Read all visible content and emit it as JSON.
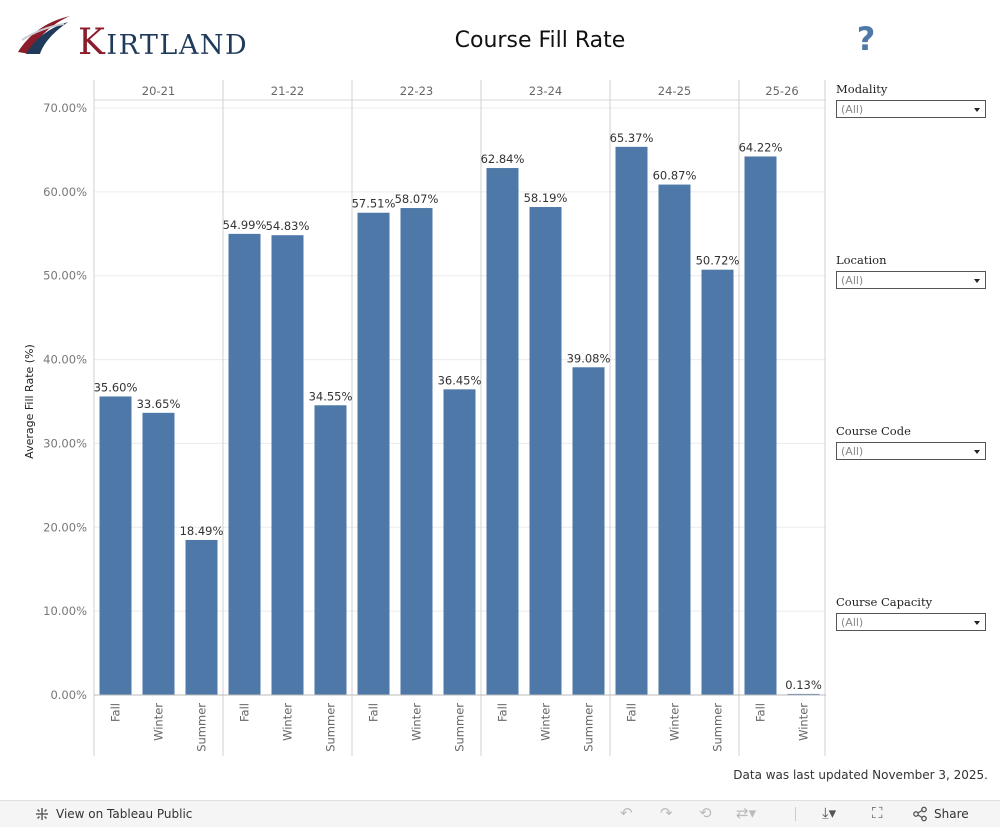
{
  "header": {
    "logo_text_initial": "K",
    "logo_text_rest": "IRTLAND",
    "title": "Course Fill Rate",
    "help_symbol": "?"
  },
  "chart_data": {
    "type": "bar",
    "title": "Course Fill Rate",
    "ylabel": "Average Fill Rate (%)",
    "xlabel": "",
    "ylim": [
      0,
      70
    ],
    "yticks": [
      "0.00%",
      "10.00%",
      "20.00%",
      "30.00%",
      "40.00%",
      "50.00%",
      "60.00%",
      "70.00%"
    ],
    "grid": true,
    "bar_color": "#4e78a8",
    "groups": [
      {
        "label": "20-21",
        "bars": [
          {
            "term": "Fall",
            "value": 35.6,
            "text": "35.60%"
          },
          {
            "term": "Winter",
            "value": 33.65,
            "text": "33.65%"
          },
          {
            "term": "Summer",
            "value": 18.49,
            "text": "18.49%"
          }
        ]
      },
      {
        "label": "21-22",
        "bars": [
          {
            "term": "Fall",
            "value": 54.99,
            "text": "54.99%"
          },
          {
            "term": "Winter",
            "value": 54.83,
            "text": "54.83%"
          },
          {
            "term": "Summer",
            "value": 34.55,
            "text": "34.55%"
          }
        ]
      },
      {
        "label": "22-23",
        "bars": [
          {
            "term": "Fall",
            "value": 57.51,
            "text": "57.51%"
          },
          {
            "term": "Winter",
            "value": 58.07,
            "text": "58.07%"
          },
          {
            "term": "Summer",
            "value": 36.45,
            "text": "36.45%"
          }
        ]
      },
      {
        "label": "23-24",
        "bars": [
          {
            "term": "Fall",
            "value": 62.84,
            "text": "62.84%"
          },
          {
            "term": "Winter",
            "value": 58.19,
            "text": "58.19%"
          },
          {
            "term": "Summer",
            "value": 39.08,
            "text": "39.08%"
          }
        ]
      },
      {
        "label": "24-25",
        "bars": [
          {
            "term": "Fall",
            "value": 65.37,
            "text": "65.37%"
          },
          {
            "term": "Winter",
            "value": 60.87,
            "text": "60.87%"
          },
          {
            "term": "Summer",
            "value": 50.72,
            "text": "50.72%"
          }
        ]
      },
      {
        "label": "25-26",
        "bars": [
          {
            "term": "Fall",
            "value": 64.22,
            "text": "64.22%"
          },
          {
            "term": "Winter",
            "value": 0.13,
            "text": "0.13%"
          }
        ]
      }
    ]
  },
  "filters": [
    {
      "label": "Modality",
      "value": "(All)"
    },
    {
      "label": "Location",
      "value": "(All)"
    },
    {
      "label": "Course Code",
      "value": "(All)"
    },
    {
      "label": "Course Capacity",
      "value": "(All)"
    }
  ],
  "footer": {
    "updated_text": "Data was last updated November 3, 2025."
  },
  "toolbar": {
    "view_label": "View on Tableau Public",
    "share_label": "Share",
    "icons": [
      "tableau-icon",
      "undo-icon",
      "redo-icon",
      "revert-icon",
      "refresh-icon",
      "download-icon",
      "fullscreen-icon",
      "share-icon"
    ]
  }
}
